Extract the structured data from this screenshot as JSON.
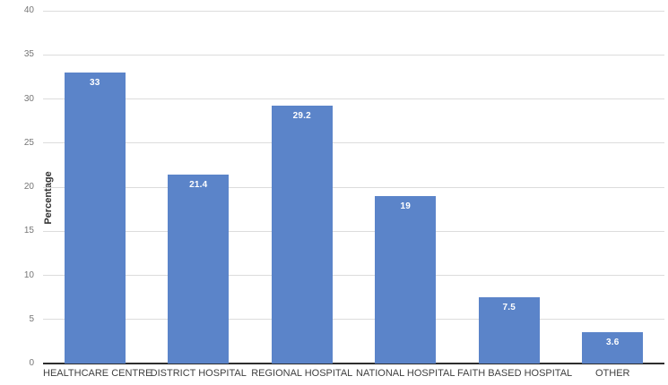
{
  "chart_data": {
    "type": "bar",
    "title": "",
    "categories": [
      "HEALTHCARE CENTRE",
      "DISTRICT HOSPITAL",
      "REGIONAL HOSPITAL",
      "NATIONAL HOSPITAL",
      "FAITH BASED HOSPITAL",
      "OTHER"
    ],
    "values": [
      33,
      21.4,
      29.2,
      19,
      7.5,
      3.6
    ],
    "value_labels": [
      "33",
      "21.4",
      "29.2",
      "19",
      "7.5",
      "3.6"
    ],
    "xlabel": "",
    "ylabel": "Percentage",
    "ylim": [
      0,
      40
    ],
    "yticks": [
      0,
      5,
      10,
      15,
      20,
      25,
      30,
      35,
      40
    ],
    "grid": true,
    "legend": "none",
    "bar_label_position": "inside-top",
    "colors": {
      "bar": "#5b84c9",
      "gridline": "#dcdcdc",
      "axis_line": "#2e2e2e",
      "tick_text": "#757575",
      "category_text": "#404040",
      "bar_label_text": "#ffffff",
      "y_axis_title_text": "#333333",
      "background": "#ffffff"
    }
  }
}
